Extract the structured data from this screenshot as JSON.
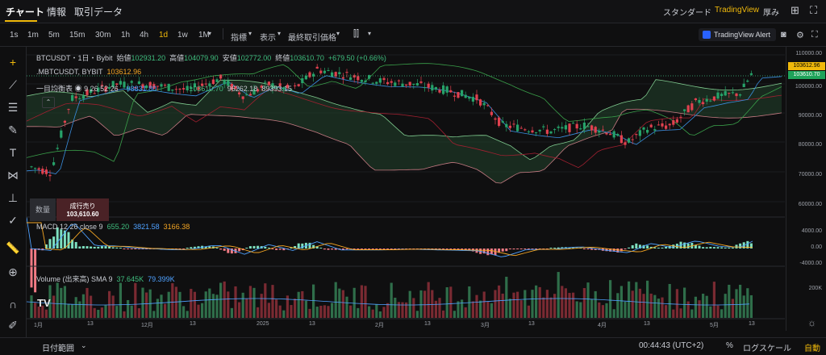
{
  "tabs": {
    "chart": "チャート",
    "info": "情報",
    "trade_data": "取引データ"
  },
  "top_right": {
    "standard": "スタンダード",
    "tradingview": "TradingView",
    "thickness": "厚み"
  },
  "timeframes": [
    "1s",
    "1m",
    "5m",
    "15m",
    "30m",
    "1h",
    "4h",
    "1d",
    "1w",
    "1M"
  ],
  "toolbar": {
    "indicators": "指標",
    "display": "表示",
    "best_price": "最終取引価格"
  },
  "alert": "TradingView Alert",
  "legend": {
    "symbol": "BTCUSDT・1日・Bybit",
    "open_label": "始値",
    "open": "102931.20",
    "high_label": "高値",
    "high": "104079.90",
    "low_label": "安値",
    "low": "102772.00",
    "close_label": "終値",
    "close": "103610.70",
    "change": "+679.50 (+0.66%)",
    "mark_symbol": ".MBTCUSDT, BYBIT",
    "mark_value": "103612.96",
    "ichimoku_label": "一目均衡表",
    "ichimoku_params": "9 26 52 26",
    "ichi_v1": "98831.80",
    "ichi_v2": "103610.70",
    "ichi_v3": "96262.18",
    "ichi_v4": "89393.15"
  },
  "order": {
    "qty_label": "数量",
    "sell_label": "成行売り",
    "sell_price": "103,610.60"
  },
  "macd": {
    "label": "MACD 12 26 close 9",
    "v1": "655.20",
    "v2": "3821.58",
    "v3": "3166.38"
  },
  "volume": {
    "label": "Volume (出来高) SMA 9",
    "v1": "37.645K",
    "v2": "79.399K"
  },
  "price_axis": {
    "ticks": [
      "110000.00",
      "103612.96",
      "103610.70",
      "100000.00",
      "90000.00",
      "80000.00",
      "70000.00",
      "60000.00",
      "4000.00",
      "0.00",
      "-4000.00",
      "200K"
    ]
  },
  "x_axis": [
    "1月",
    "13",
    "12月",
    "13",
    "2025",
    "13",
    "2月",
    "13",
    "3月",
    "13",
    "4月",
    "13",
    "5月",
    "13"
  ],
  "bottom": {
    "date_range": "日付範囲",
    "time": "00:44:43 (UTC+2)",
    "percent": "%",
    "log": "ログスケール",
    "auto": "自動"
  },
  "colors": {
    "up": "#26a269",
    "down": "#e0414f",
    "accent": "#f0b90b"
  }
}
